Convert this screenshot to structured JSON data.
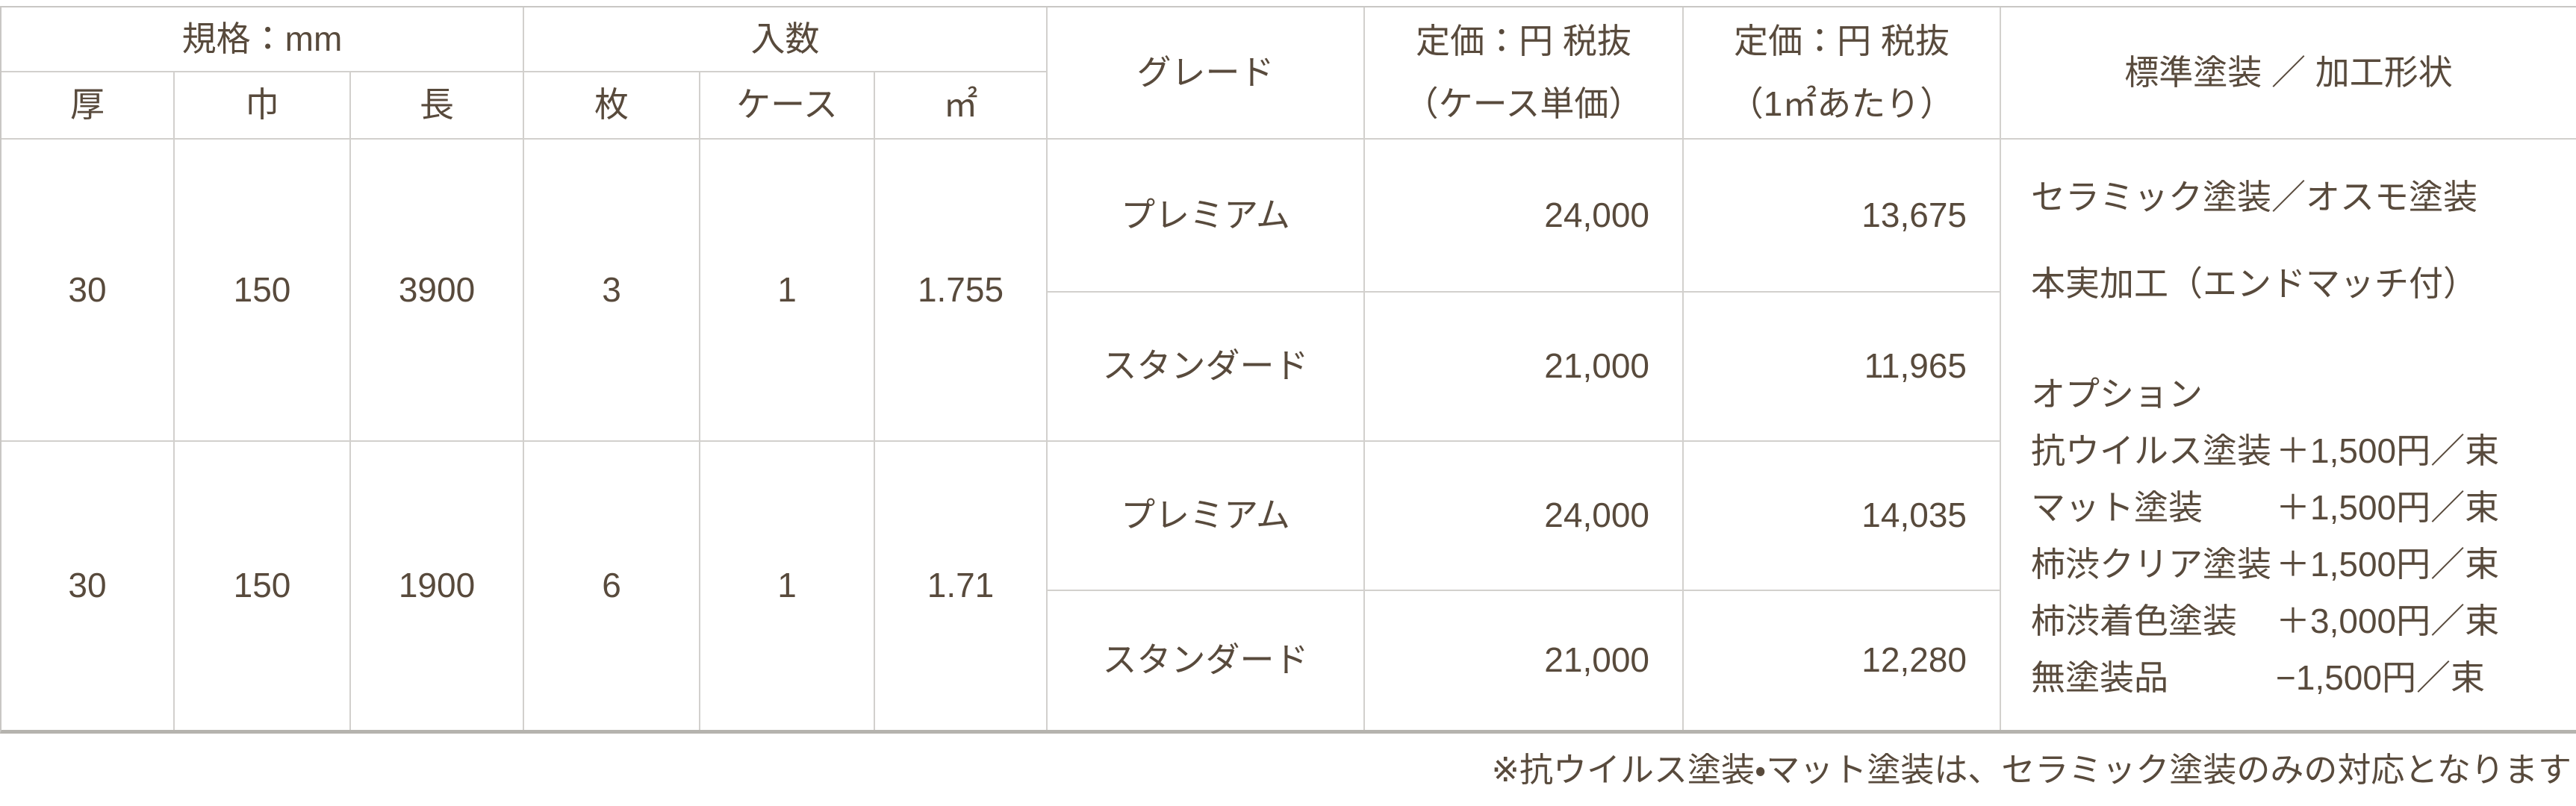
{
  "table": {
    "header": {
      "spec_group": "規格：mm",
      "qty_group": "入数",
      "col_thickness": "厚",
      "col_width": "巾",
      "col_length": "長",
      "col_pieces": "枚",
      "col_case": "ケース",
      "col_sqm": "㎡",
      "grade": "グレード",
      "price_case_line1": "定価：円 税抜",
      "price_case_line2": "（ケース単価）",
      "price_sqm_line1": "定価：円 税抜",
      "price_sqm_line2": "（1㎡あたり）",
      "finish": "標準塗装 ／ 加工形状"
    },
    "groups": [
      {
        "thickness": "30",
        "width": "150",
        "length": "3900",
        "pieces": "3",
        "case": "1",
        "sqm": "1.755",
        "rows": [
          {
            "grade": "プレミアム",
            "price_case": "24,000",
            "price_sqm": "13,675"
          },
          {
            "grade": "スタンダード",
            "price_case": "21,000",
            "price_sqm": "11,965"
          }
        ]
      },
      {
        "thickness": "30",
        "width": "150",
        "length": "1900",
        "pieces": "6",
        "case": "1",
        "sqm": "1.71",
        "rows": [
          {
            "grade": "プレミアム",
            "price_case": "24,000",
            "price_sqm": "14,035"
          },
          {
            "grade": "スタンダード",
            "price_case": "21,000",
            "price_sqm": "12,280"
          }
        ]
      }
    ],
    "finish_cell": {
      "line1": "セラミック塗装／オスモ塗装",
      "line2": "本実加工（エンドマッチ付）",
      "options_title": "オプション",
      "options": [
        {
          "name": "抗ウイルス塗装",
          "price": "＋1,500円／束"
        },
        {
          "name": "マット塗装",
          "price": "＋1,500円／束"
        },
        {
          "name": "柿渋クリア塗装",
          "price": "＋1,500円／束"
        },
        {
          "name": "柿渋着色塗装",
          "price": "＋3,000円／束"
        },
        {
          "name": "無塗装品",
          "price": "−1,500円／束"
        }
      ]
    }
  },
  "note": "※抗ウイルス塗装・マット塗装は、セラミック塗装のみの対応となります",
  "colors": {
    "text": "#584a3c",
    "grid_line": "#d2d0cd",
    "bottom_border": "#b5b3ae"
  }
}
